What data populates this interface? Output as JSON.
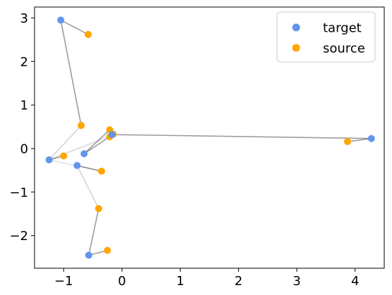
{
  "chart_data": {
    "type": "scatter",
    "xlim": [
      -1.5,
      4.5
    ],
    "ylim": [
      -2.75,
      3.25
    ],
    "xticks": [
      -1,
      0,
      1,
      2,
      3,
      4
    ],
    "yticks": [
      -2,
      -1,
      0,
      1,
      2,
      3
    ],
    "xtick_labels": [
      "−1",
      "0",
      "1",
      "2",
      "3",
      "4"
    ],
    "ytick_labels": [
      "−2",
      "−1",
      "0",
      "1",
      "2",
      "3"
    ],
    "grid": false,
    "legend_position": "top-right",
    "series": [
      {
        "name": "target",
        "color": "#6495ed",
        "points": [
          {
            "x": -1.05,
            "y": 2.95
          },
          {
            "x": -1.25,
            "y": -0.26
          },
          {
            "x": -0.77,
            "y": -0.39
          },
          {
            "x": -0.65,
            "y": -0.12
          },
          {
            "x": -0.57,
            "y": -2.45
          },
          {
            "x": -0.17,
            "y": 0.32
          },
          {
            "x": 4.28,
            "y": 0.23
          }
        ]
      },
      {
        "name": "source",
        "color": "#ffa500",
        "points": [
          {
            "x": -0.58,
            "y": 2.62
          },
          {
            "x": -0.7,
            "y": 0.53
          },
          {
            "x": -1.0,
            "y": -0.17
          },
          {
            "x": -0.35,
            "y": -0.52
          },
          {
            "x": -0.4,
            "y": -1.38
          },
          {
            "x": -0.25,
            "y": -2.34
          },
          {
            "x": -0.21,
            "y": 0.43
          },
          {
            "x": -0.15,
            "y": 0.33
          },
          {
            "x": -0.21,
            "y": 0.27
          },
          {
            "x": 3.87,
            "y": 0.16
          }
        ]
      }
    ],
    "links": [
      {
        "from": [
          -1.05,
          2.95
        ],
        "to": [
          -0.58,
          2.62
        ],
        "alpha": 0.7
      },
      {
        "from": [
          -1.05,
          2.95
        ],
        "to": [
          -0.7,
          0.53
        ],
        "alpha": 0.7
      },
      {
        "from": [
          -1.25,
          -0.26
        ],
        "to": [
          -1.0,
          -0.17
        ],
        "alpha": 0.7
      },
      {
        "from": [
          -1.25,
          -0.26
        ],
        "to": [
          -0.7,
          0.53
        ],
        "alpha": 0.3
      },
      {
        "from": [
          -1.25,
          -0.26
        ],
        "to": [
          -0.21,
          0.27
        ],
        "alpha": 0.15
      },
      {
        "from": [
          -1.25,
          -0.26
        ],
        "to": [
          -0.15,
          0.33
        ],
        "alpha": 0.15
      },
      {
        "from": [
          -1.25,
          -0.26
        ],
        "to": [
          -0.35,
          -0.52
        ],
        "alpha": 0.2
      },
      {
        "from": [
          -0.77,
          -0.39
        ],
        "to": [
          -0.35,
          -0.52
        ],
        "alpha": 0.7
      },
      {
        "from": [
          -0.77,
          -0.39
        ],
        "to": [
          -0.4,
          -1.38
        ],
        "alpha": 0.3
      },
      {
        "from": [
          -0.65,
          -0.12
        ],
        "to": [
          -0.21,
          0.43
        ],
        "alpha": 0.7
      },
      {
        "from": [
          -0.65,
          -0.12
        ],
        "to": [
          -0.21,
          0.27
        ],
        "alpha": 0.7
      },
      {
        "from": [
          -0.57,
          -2.45
        ],
        "to": [
          -0.4,
          -1.38
        ],
        "alpha": 0.7
      },
      {
        "from": [
          -0.57,
          -2.45
        ],
        "to": [
          -0.25,
          -2.34
        ],
        "alpha": 0.7
      },
      {
        "from": [
          -0.17,
          0.32
        ],
        "to": [
          -0.21,
          0.43
        ],
        "alpha": 0.7
      },
      {
        "from": [
          -0.17,
          0.32
        ],
        "to": [
          -0.15,
          0.33
        ],
        "alpha": 0.7
      },
      {
        "from": [
          -0.17,
          0.32
        ],
        "to": [
          -0.21,
          0.27
        ],
        "alpha": 0.7
      },
      {
        "from": [
          -0.17,
          0.32
        ],
        "to": [
          4.28,
          0.23
        ],
        "alpha": 0.7
      },
      {
        "from": [
          4.28,
          0.23
        ],
        "to": [
          3.87,
          0.16
        ],
        "alpha": 0.7
      }
    ]
  },
  "legend": {
    "items": [
      {
        "label": "target",
        "color": "#6495ed"
      },
      {
        "label": "source",
        "color": "#ffa500"
      }
    ]
  }
}
